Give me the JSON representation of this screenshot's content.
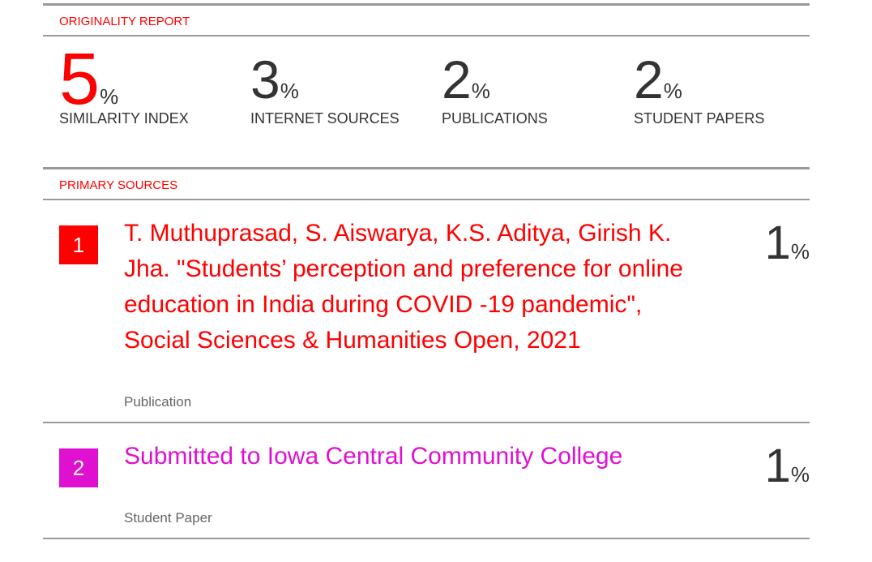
{
  "report": {
    "title": "ORIGINALITY REPORT",
    "stats": [
      {
        "value": "5",
        "unit": "%",
        "label": "SIMILARITY INDEX"
      },
      {
        "value": "3",
        "unit": "%",
        "label": "INTERNET SOURCES"
      },
      {
        "value": "2",
        "unit": "%",
        "label": "PUBLICATIONS"
      },
      {
        "value": "2",
        "unit": "%",
        "label": "STUDENT PAPERS"
      }
    ],
    "primary_sources_title": "PRIMARY SOURCES",
    "sources": [
      {
        "rank": "1",
        "title": "T. Muthuprasad, S. Aiswarya, K.S. Aditya, Girish K. Jha. \"Students’ perception and preference for online education in India during COVID -19 pandemic\", Social Sciences & Humanities Open, 2021",
        "type": "Publication",
        "percent": "1",
        "unit": "%",
        "color": "#ff0000"
      },
      {
        "rank": "2",
        "title": "Submitted to Iowa Central Community College",
        "type": "Student Paper",
        "percent": "1",
        "unit": "%",
        "color": "#e010d0"
      }
    ]
  }
}
